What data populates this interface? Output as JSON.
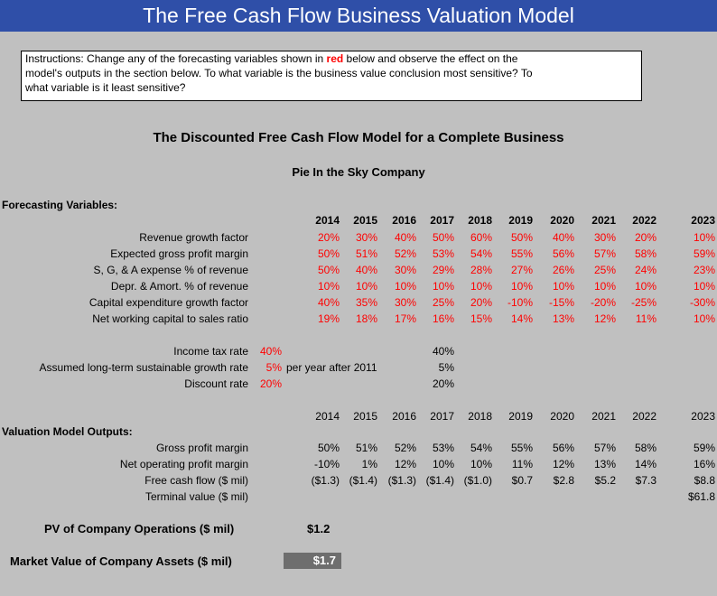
{
  "title": "The Free Cash Flow Business Valuation Model",
  "instructions": {
    "prefix": "Instructions:  Change any of the forecasting variables shown in ",
    "red_word": "red",
    "line1_rest": " below and observe the effect on the",
    "line2": "model's outputs in the section below.  To what variable is the business value conclusion most sensitive?  To",
    "line3": "what variable is it least sensitive?"
  },
  "heading": "The Discounted Free Cash Flow Model for a Complete Business",
  "company": "Pie In the Sky Company",
  "forecasting": {
    "section_label": "Forecasting Variables:",
    "years": [
      "2014",
      "2015",
      "2016",
      "2017",
      "2018",
      "2019",
      "2020",
      "2021",
      "2022",
      "2023"
    ],
    "rows": [
      {
        "label": "Revenue growth factor",
        "values": [
          "20%",
          "30%",
          "40%",
          "50%",
          "60%",
          "50%",
          "40%",
          "30%",
          "20%",
          "10%"
        ]
      },
      {
        "label": "Expected gross profit margin",
        "values": [
          "50%",
          "51%",
          "52%",
          "53%",
          "54%",
          "55%",
          "56%",
          "57%",
          "58%",
          "59%"
        ]
      },
      {
        "label": "S, G, & A expense % of revenue",
        "values": [
          "50%",
          "40%",
          "30%",
          "29%",
          "28%",
          "27%",
          "26%",
          "25%",
          "24%",
          "23%"
        ]
      },
      {
        "label": "Depr. & Amort. % of revenue",
        "values": [
          "10%",
          "10%",
          "10%",
          "10%",
          "10%",
          "10%",
          "10%",
          "10%",
          "10%",
          "10%"
        ]
      },
      {
        "label": "Capital expenditure growth factor",
        "values": [
          "40%",
          "35%",
          "30%",
          "25%",
          "20%",
          "-10%",
          "-15%",
          "-20%",
          "-25%",
          "-30%"
        ]
      },
      {
        "label": "Net working capital to sales ratio",
        "values": [
          "19%",
          "18%",
          "17%",
          "16%",
          "15%",
          "14%",
          "13%",
          "12%",
          "11%",
          "10%"
        ]
      }
    ]
  },
  "rates": [
    {
      "label": "Income tax rate",
      "value": "40%",
      "note": "",
      "echo": "40%"
    },
    {
      "label": "Assumed long-term sustainable growth rate",
      "value": "5%",
      "note": "per year after 2011",
      "echo": "5%"
    },
    {
      "label": "Discount rate",
      "value": "20%",
      "note": "",
      "echo": "20%"
    }
  ],
  "outputs": {
    "section_label": "Valuation Model Outputs:",
    "years": [
      "2014",
      "2015",
      "2016",
      "2017",
      "2018",
      "2019",
      "2020",
      "2021",
      "2022",
      "2023"
    ],
    "rows": [
      {
        "label": "Gross profit margin",
        "values": [
          "50%",
          "51%",
          "52%",
          "53%",
          "54%",
          "55%",
          "56%",
          "57%",
          "58%",
          "59%"
        ]
      },
      {
        "label": "Net operating profit margin",
        "values": [
          "-10%",
          "1%",
          "12%",
          "10%",
          "10%",
          "11%",
          "12%",
          "13%",
          "14%",
          "16%"
        ]
      },
      {
        "label": "Free cash flow ($ mil)",
        "values": [
          "($1.3)",
          "($1.4)",
          "($1.3)",
          "($1.4)",
          "($1.0)",
          "$0.7",
          "$2.8",
          "$5.2",
          "$7.3",
          "$8.8"
        ]
      },
      {
        "label": "Terminal value ($ mil)",
        "values": [
          "",
          "",
          "",
          "",
          "",
          "",
          "",
          "",
          "",
          "$61.8"
        ]
      }
    ]
  },
  "pv": {
    "label": "PV of Company Operations ($ mil)",
    "value": "$1.2"
  },
  "market_value": {
    "label": "Market Value of Company Assets ($ mil)",
    "value": "$1.7"
  }
}
